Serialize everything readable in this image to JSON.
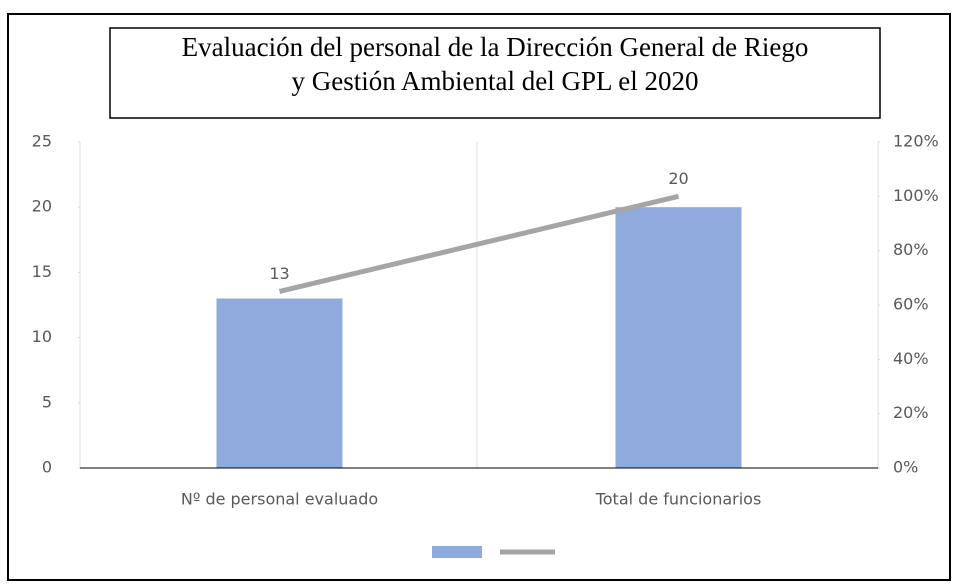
{
  "chart_data": {
    "type": "bar",
    "title": "Evaluación del personal de la Dirección General de Riego\ny Gestión Ambiental del GPL el 2020",
    "categories": [
      "Nº de personal evaluado",
      "Total de funcionarios"
    ],
    "series": [
      {
        "type": "bar",
        "color": "#8faadc",
        "values": [
          13,
          20
        ]
      },
      {
        "type": "line",
        "color": "#a5a5a5",
        "axis": "y2",
        "values": [
          65,
          100
        ]
      }
    ],
    "ylim": [
      0,
      25
    ],
    "yticks": [
      0,
      5,
      10,
      15,
      20,
      25
    ],
    "y2lim": [
      0,
      120
    ],
    "y2ticks": [
      {
        "value": 0,
        "label": "0%"
      },
      {
        "value": 20,
        "label": "20%"
      },
      {
        "value": 40,
        "label": "40%"
      },
      {
        "value": 60,
        "label": "60%"
      },
      {
        "value": 80,
        "label": "80%"
      },
      {
        "value": 100,
        "label": "100%"
      },
      {
        "value": 120,
        "label": "120%"
      }
    ],
    "legend": "bottom"
  }
}
